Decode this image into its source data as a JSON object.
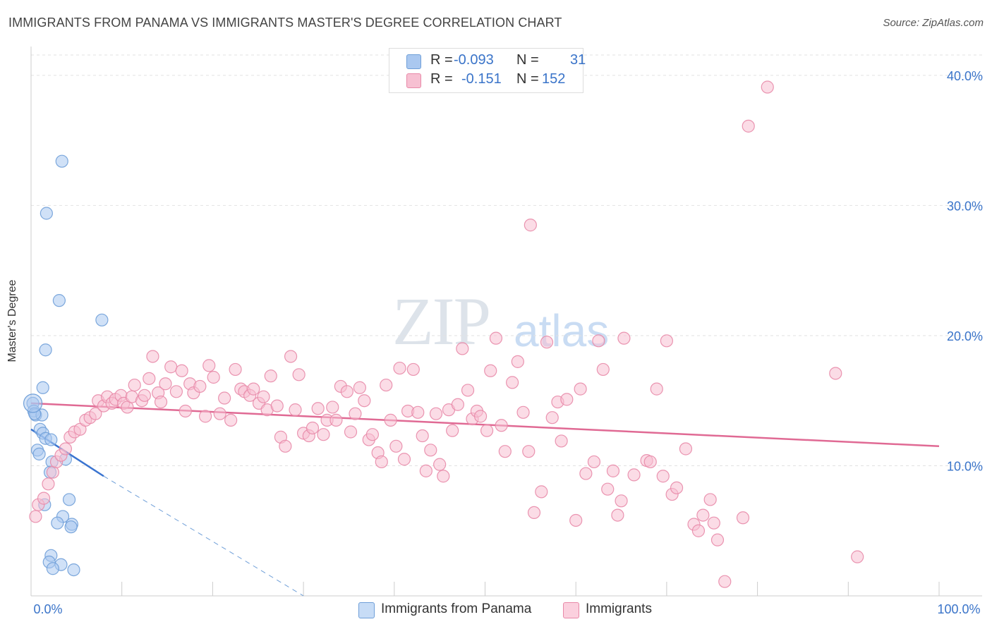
{
  "header": {
    "title": "IMMIGRANTS FROM PANAMA VS IMMIGRANTS MASTER'S DEGREE CORRELATION CHART",
    "source": "Source: ZipAtlas.com"
  },
  "watermark": {
    "zip": "ZIP",
    "atlas": "atlas"
  },
  "legend": {
    "rows": [
      {
        "r_label": "R =",
        "r_value": "-0.093",
        "n_label": "N =",
        "n_value": "31",
        "color": "#aac8f0",
        "border": "#6f9fd8"
      },
      {
        "r_label": "R =",
        "r_value": "-0.151",
        "n_label": "N =",
        "n_value": "152",
        "color": "#f7c0d2",
        "border": "#e889a8"
      }
    ]
  },
  "bottom_legend": [
    {
      "label": "Immigrants from Panama",
      "color": "#c7dcf6",
      "border": "#6f9fd8"
    },
    {
      "label": "Immigrants",
      "color": "#fbd0de",
      "border": "#e889a8"
    }
  ],
  "chart_data": {
    "type": "scatter",
    "title": "IMMIGRANTS FROM PANAMA VS IMMIGRANTS MASTER'S DEGREE CORRELATION CHART",
    "xlabel": "",
    "ylabel": "Master's Degree",
    "xlim": [
      0,
      100
    ],
    "ylim": [
      0,
      42
    ],
    "x_tick_labels": [
      "0.0%",
      "100.0%"
    ],
    "y_ticks": [
      10,
      20,
      30,
      40
    ],
    "y_tick_labels": [
      "10.0%",
      "20.0%",
      "30.0%",
      "40.0%"
    ],
    "series": [
      {
        "name": "Immigrants from Panama",
        "color": "#6f9fd8",
        "fill": "#aac8f0",
        "points": [
          [
            0.2,
            14.8
          ],
          [
            0.3,
            14.2
          ],
          [
            0.5,
            13.9
          ],
          [
            1.2,
            13.9
          ],
          [
            1.0,
            12.8
          ],
          [
            1.3,
            12.5
          ],
          [
            1.6,
            12.1
          ],
          [
            0.7,
            11.2
          ],
          [
            0.9,
            10.9
          ],
          [
            2.2,
            12.0
          ],
          [
            2.3,
            10.3
          ],
          [
            3.8,
            10.5
          ],
          [
            2.1,
            9.5
          ],
          [
            1.3,
            16.0
          ],
          [
            1.6,
            18.9
          ],
          [
            1.7,
            29.4
          ],
          [
            3.1,
            22.7
          ],
          [
            3.4,
            33.4
          ],
          [
            7.8,
            21.2
          ],
          [
            1.5,
            7.0
          ],
          [
            4.2,
            7.4
          ],
          [
            3.5,
            6.1
          ],
          [
            2.9,
            5.6
          ],
          [
            4.5,
            5.5
          ],
          [
            4.4,
            5.3
          ],
          [
            2.2,
            3.1
          ],
          [
            2.0,
            2.6
          ],
          [
            3.3,
            2.4
          ],
          [
            2.4,
            2.1
          ],
          [
            4.7,
            2.0
          ],
          [
            0.4,
            14.0
          ]
        ],
        "trend": {
          "x": [
            0,
            8
          ],
          "y": [
            12.8,
            9.2
          ],
          "dashed_to": [
            30,
            0
          ]
        }
      },
      {
        "name": "Immigrants",
        "color": "#e889a8",
        "fill": "#f7c0d2",
        "points": [
          [
            0.5,
            6.1
          ],
          [
            0.8,
            7.0
          ],
          [
            1.4,
            7.5
          ],
          [
            1.9,
            8.6
          ],
          [
            2.4,
            9.5
          ],
          [
            2.8,
            10.3
          ],
          [
            3.3,
            10.8
          ],
          [
            3.8,
            11.3
          ],
          [
            4.3,
            12.2
          ],
          [
            4.8,
            12.6
          ],
          [
            5.4,
            12.8
          ],
          [
            6.0,
            13.5
          ],
          [
            6.5,
            13.7
          ],
          [
            7.1,
            14.0
          ],
          [
            7.4,
            15.0
          ],
          [
            8.0,
            14.6
          ],
          [
            8.4,
            15.3
          ],
          [
            8.9,
            14.8
          ],
          [
            9.3,
            15.1
          ],
          [
            9.9,
            15.4
          ],
          [
            10.2,
            14.8
          ],
          [
            10.6,
            14.5
          ],
          [
            11.1,
            15.3
          ],
          [
            11.4,
            16.2
          ],
          [
            12.2,
            15.0
          ],
          [
            12.5,
            15.4
          ],
          [
            13.0,
            16.7
          ],
          [
            13.4,
            18.4
          ],
          [
            14.0,
            15.6
          ],
          [
            14.3,
            14.9
          ],
          [
            14.8,
            16.3
          ],
          [
            15.4,
            17.6
          ],
          [
            16.0,
            15.7
          ],
          [
            16.6,
            17.3
          ],
          [
            17.0,
            14.2
          ],
          [
            17.5,
            16.3
          ],
          [
            17.9,
            15.6
          ],
          [
            18.6,
            16.1
          ],
          [
            19.2,
            13.8
          ],
          [
            19.6,
            17.7
          ],
          [
            20.1,
            16.8
          ],
          [
            20.8,
            14.0
          ],
          [
            21.3,
            15.2
          ],
          [
            22.0,
            13.5
          ],
          [
            22.5,
            17.4
          ],
          [
            23.1,
            15.9
          ],
          [
            23.5,
            15.7
          ],
          [
            24.1,
            15.4
          ],
          [
            24.5,
            15.9
          ],
          [
            25.1,
            14.8
          ],
          [
            25.6,
            15.3
          ],
          [
            26.0,
            14.3
          ],
          [
            26.4,
            16.9
          ],
          [
            27.1,
            14.6
          ],
          [
            27.5,
            12.2
          ],
          [
            28.0,
            11.5
          ],
          [
            28.6,
            18.4
          ],
          [
            29.1,
            14.3
          ],
          [
            29.5,
            17.0
          ],
          [
            30.0,
            12.5
          ],
          [
            30.6,
            12.3
          ],
          [
            31.0,
            12.9
          ],
          [
            31.6,
            14.4
          ],
          [
            32.2,
            12.4
          ],
          [
            32.6,
            13.5
          ],
          [
            33.2,
            14.5
          ],
          [
            33.6,
            13.5
          ],
          [
            34.1,
            16.1
          ],
          [
            34.8,
            15.7
          ],
          [
            35.2,
            12.6
          ],
          [
            35.7,
            14.0
          ],
          [
            36.2,
            16.0
          ],
          [
            36.7,
            15.0
          ],
          [
            37.2,
            12.0
          ],
          [
            37.6,
            12.4
          ],
          [
            38.2,
            11.0
          ],
          [
            38.6,
            10.3
          ],
          [
            39.1,
            16.2
          ],
          [
            39.6,
            13.5
          ],
          [
            40.2,
            11.5
          ],
          [
            40.6,
            17.5
          ],
          [
            41.1,
            10.5
          ],
          [
            41.5,
            14.2
          ],
          [
            42.1,
            17.4
          ],
          [
            42.6,
            14.1
          ],
          [
            43.1,
            12.3
          ],
          [
            43.5,
            9.6
          ],
          [
            44.0,
            11.2
          ],
          [
            44.6,
            14.0
          ],
          [
            45.0,
            10.1
          ],
          [
            45.4,
            9.2
          ],
          [
            46.0,
            14.3
          ],
          [
            46.4,
            12.7
          ],
          [
            47.0,
            14.7
          ],
          [
            47.5,
            19.0
          ],
          [
            48.1,
            15.8
          ],
          [
            48.6,
            13.6
          ],
          [
            49.1,
            14.2
          ],
          [
            49.5,
            13.8
          ],
          [
            50.2,
            12.7
          ],
          [
            50.6,
            17.3
          ],
          [
            51.2,
            19.8
          ],
          [
            51.8,
            13.1
          ],
          [
            52.2,
            11.1
          ],
          [
            53.0,
            16.4
          ],
          [
            53.6,
            18.0
          ],
          [
            54.2,
            14.1
          ],
          [
            54.8,
            11.1
          ],
          [
            55.0,
            28.5
          ],
          [
            55.4,
            6.4
          ],
          [
            56.2,
            8.0
          ],
          [
            56.8,
            19.5
          ],
          [
            57.4,
            13.7
          ],
          [
            58.0,
            14.9
          ],
          [
            58.4,
            11.9
          ],
          [
            59.0,
            15.1
          ],
          [
            60.0,
            5.8
          ],
          [
            60.5,
            15.9
          ],
          [
            61.1,
            9.4
          ],
          [
            62.0,
            10.3
          ],
          [
            62.5,
            19.6
          ],
          [
            63.0,
            17.4
          ],
          [
            63.5,
            8.2
          ],
          [
            64.1,
            9.6
          ],
          [
            64.6,
            6.2
          ],
          [
            65.0,
            7.3
          ],
          [
            65.3,
            19.8
          ],
          [
            66.4,
            9.3
          ],
          [
            67.8,
            10.4
          ],
          [
            68.2,
            10.3
          ],
          [
            68.9,
            15.9
          ],
          [
            69.6,
            9.2
          ],
          [
            70.0,
            19.6
          ],
          [
            70.6,
            7.8
          ],
          [
            71.1,
            8.3
          ],
          [
            72.1,
            11.3
          ],
          [
            73.0,
            5.5
          ],
          [
            73.5,
            5.0
          ],
          [
            74.0,
            6.2
          ],
          [
            74.8,
            7.4
          ],
          [
            75.2,
            5.6
          ],
          [
            75.6,
            4.3
          ],
          [
            76.4,
            1.1
          ],
          [
            78.4,
            6.0
          ],
          [
            79.0,
            36.1
          ],
          [
            81.1,
            39.1
          ],
          [
            88.6,
            17.1
          ],
          [
            91.0,
            3.0
          ]
        ],
        "trend": {
          "x": [
            0,
            100
          ],
          "y": [
            14.8,
            11.5
          ]
        }
      }
    ]
  }
}
